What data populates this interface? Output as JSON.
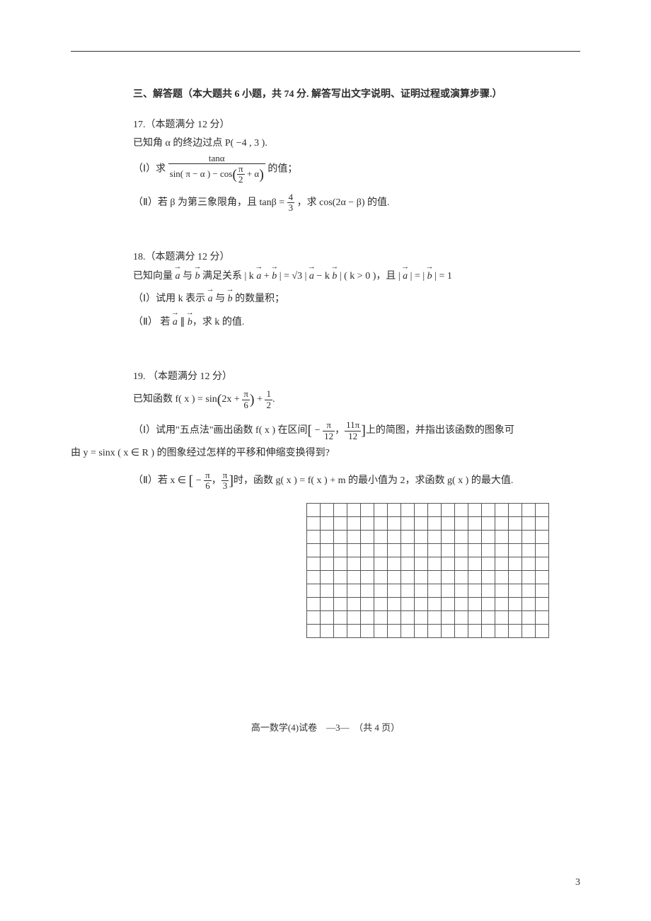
{
  "sectionHeader": "三、解答题（本大题共 6 小题，共 74 分. 解答写出文字说明、证明过程或演算步骤.）",
  "q17": {
    "header": "17.（本题满分 12 分）",
    "given": "已知角 α 的终边过点 P( −4 , 3 ).",
    "part1_pre": "（Ⅰ）求",
    "part1_num": "tanα",
    "part1_den_a": "sin( π − α ) − cos",
    "part1_den_b_num": "π",
    "part1_den_b_den": "2",
    "part1_den_c": "+ α",
    "part1_post": "的值；",
    "part2_a": "（Ⅱ）若 β 为第三象限角，且 tanβ = ",
    "part2_frac_num": "4",
    "part2_frac_den": "3",
    "part2_b": "，求 cos(2α − β) 的值."
  },
  "q18": {
    "header": "18.（本题满分 12 分）",
    "given_a": "已知向量 ",
    "vec_a": "a",
    "given_b": " 与 ",
    "vec_b": "b",
    "given_c": " 满足关系 | k ",
    "given_d": " + ",
    "given_e": " | = ",
    "sqrt3": "√3",
    "given_f": " | ",
    "given_g": " − k ",
    "given_h": " | ( k > 0 )，且 | ",
    "given_i": " | = | ",
    "given_j": " | = 1",
    "part1_a": "（Ⅰ）试用 k 表示 ",
    "part1_b": " 与 ",
    "part1_c": " 的数量积；",
    "part2_a": "（Ⅱ） 若 ",
    "part2_b": " ∥ ",
    "part2_c": "，求 k 的值."
  },
  "q19": {
    "header": "19. （本题满分 12 分）",
    "given_a": "已知函数 f( x ) = sin",
    "given_arg_a": "2x + ",
    "given_arg_num": "π",
    "given_arg_den": "6",
    "given_b": " + ",
    "given_half_num": "1",
    "given_half_den": "2",
    "given_c": ".",
    "part1_a": "（Ⅰ）试用\"五点法\"画出函数 f( x ) 在区间",
    "part1_int_a": " − ",
    "part1_int_l_num": "π",
    "part1_int_l_den": "12",
    "part1_int_mid": "，",
    "part1_int_r_num": "11π",
    "part1_int_r_den": "12",
    "part1_b": "上的简图，并指出该函数的图象可",
    "part1_c": "由 y = sinx ( x ∈ R ) 的图象经过怎样的平移和伸缩变换得到?",
    "part2_a": "（Ⅱ）若 x ∈ ",
    "part2_l_a": " − ",
    "part2_l_num": "π",
    "part2_l_den": "6",
    "part2_mid": "，",
    "part2_r_num": "π",
    "part2_r_den": "3",
    "part2_b": "时，函数 g( x ) = f( x ) + m 的最小值为 2，求函数 g( x ) 的最大值."
  },
  "grid": {
    "rows": 10,
    "cols": 18,
    "cell": 18,
    "border_color": "#555555"
  },
  "footer": "高一数学(4)试卷　—3—　（共 4 页）",
  "pageCorner": "3"
}
